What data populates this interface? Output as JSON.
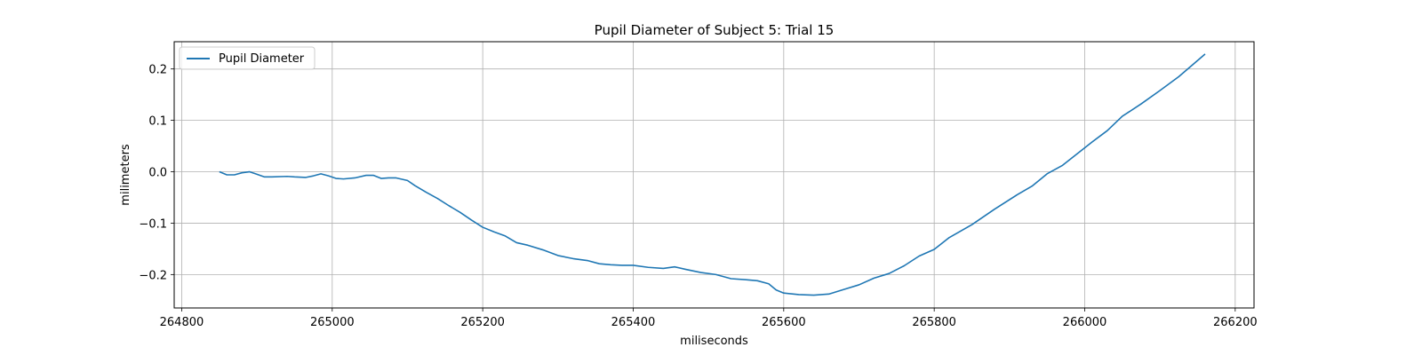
{
  "chart_data": {
    "type": "line",
    "title": "Pupil Diameter of Subject 5: Trial 15",
    "xlabel": "miliseconds",
    "ylabel": "milimeters",
    "xlim": [
      264790,
      266225
    ],
    "ylim": [
      -0.265,
      0.253
    ],
    "x_ticks": [
      264800,
      265000,
      265200,
      265400,
      265600,
      265800,
      266000,
      266200
    ],
    "y_ticks": [
      -0.2,
      -0.1,
      0.0,
      0.1,
      0.2
    ],
    "x_tick_labels": [
      "264800",
      "265000",
      "265200",
      "265400",
      "265600",
      "265800",
      "266000",
      "266200"
    ],
    "y_tick_labels": [
      "−0.2",
      "−0.1",
      "0.0",
      "0.1",
      "0.2"
    ],
    "grid": true,
    "legend_position": "top-left",
    "series": [
      {
        "name": "Pupil Diameter",
        "color": "#1f77b4",
        "x": [
          264850,
          264860,
          264870,
          264880,
          264890,
          264900,
          264910,
          264920,
          264940,
          264950,
          264965,
          264975,
          264985,
          264995,
          265005,
          265015,
          265030,
          265045,
          265055,
          265065,
          265075,
          265085,
          265100,
          265110,
          265125,
          265140,
          265155,
          265170,
          265185,
          265200,
          265215,
          265230,
          265245,
          265260,
          265280,
          265300,
          265320,
          265340,
          265355,
          265370,
          265385,
          265400,
          265420,
          265440,
          265455,
          265470,
          265490,
          265510,
          265530,
          265550,
          265565,
          265580,
          265590,
          265600,
          265620,
          265640,
          265660,
          265680,
          265700,
          265720,
          265740,
          265760,
          265780,
          265800,
          265820,
          265850,
          265880,
          265910,
          265930,
          265950,
          265970,
          265990,
          266010,
          266030,
          266050,
          266075,
          266100,
          266125,
          266160
        ],
        "y": [
          0.0,
          -0.006,
          -0.006,
          -0.002,
          0.0,
          -0.005,
          -0.01,
          -0.01,
          -0.009,
          -0.01,
          -0.011,
          -0.008,
          -0.004,
          -0.008,
          -0.013,
          -0.014,
          -0.012,
          -0.007,
          -0.007,
          -0.013,
          -0.012,
          -0.012,
          -0.017,
          -0.027,
          -0.04,
          -0.052,
          -0.066,
          -0.079,
          -0.094,
          -0.108,
          -0.117,
          -0.125,
          -0.138,
          -0.143,
          -0.152,
          -0.163,
          -0.169,
          -0.173,
          -0.179,
          -0.181,
          -0.182,
          -0.182,
          -0.186,
          -0.188,
          -0.185,
          -0.19,
          -0.196,
          -0.2,
          -0.208,
          -0.21,
          -0.212,
          -0.218,
          -0.23,
          -0.236,
          -0.239,
          -0.24,
          -0.238,
          -0.229,
          -0.22,
          -0.207,
          -0.198,
          -0.183,
          -0.164,
          -0.151,
          -0.128,
          -0.103,
          -0.073,
          -0.045,
          -0.028,
          -0.004,
          0.012,
          0.035,
          0.058,
          0.08,
          0.108,
          0.132,
          0.158,
          0.185,
          0.229
        ]
      }
    ]
  }
}
